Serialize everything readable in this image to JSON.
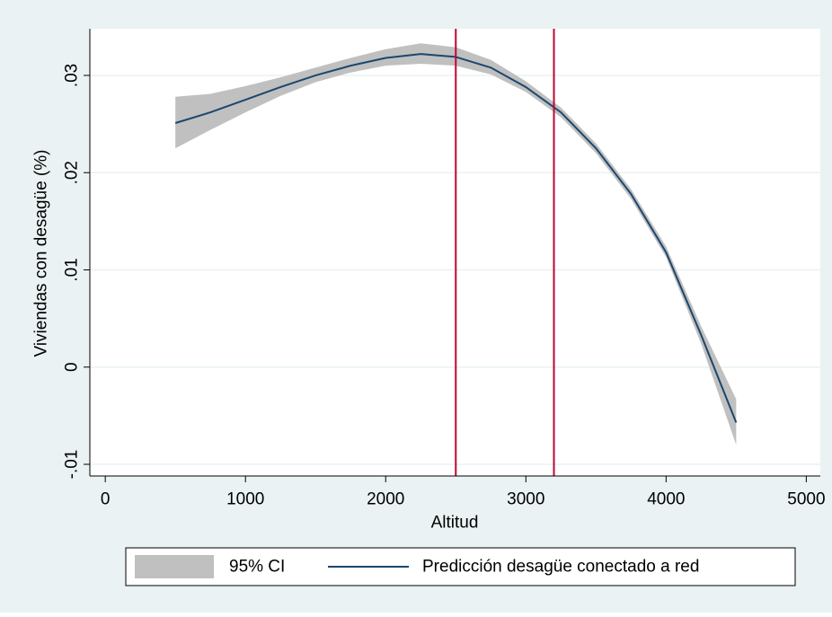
{
  "chart_data": {
    "type": "line",
    "xlabel": "Altitud",
    "ylabel": "Viviendas con desagüe (%)",
    "x": [
      500,
      750,
      1000,
      1250,
      1500,
      1750,
      2000,
      2250,
      2500,
      2750,
      3000,
      3250,
      3500,
      3750,
      4000,
      4250,
      4500
    ],
    "series": [
      {
        "name": "95% CI",
        "color": "#c0c0c0",
        "lower": [
          0.0225,
          0.0244,
          0.0262,
          0.0279,
          0.0293,
          0.0303,
          0.031,
          0.0312,
          0.031,
          0.0301,
          0.0283,
          0.0257,
          0.022,
          0.0173,
          0.0113,
          0.0024,
          -0.008
        ],
        "upper": [
          0.0278,
          0.0281,
          0.0289,
          0.0298,
          0.0308,
          0.0318,
          0.0327,
          0.0333,
          0.0329,
          0.0316,
          0.0294,
          0.0267,
          0.023,
          0.0183,
          0.0124,
          0.0042,
          -0.0033
        ]
      },
      {
        "name": "Predicción desagüe conectado a red",
        "color": "#1a476f",
        "values": [
          0.0251,
          0.0262,
          0.0275,
          0.0288,
          0.03,
          0.031,
          0.0318,
          0.0322,
          0.0319,
          0.0308,
          0.0288,
          0.0262,
          0.0225,
          0.0178,
          0.0118,
          0.0033,
          -0.0057
        ]
      }
    ],
    "vlines": [
      2500,
      3200
    ],
    "vline_color": "#c10534",
    "xlim": [
      -110,
      5100
    ],
    "xticks": [
      0,
      1000,
      2000,
      3000,
      4000,
      5000
    ],
    "ylim": [
      -0.0112,
      0.0348
    ],
    "yticks": [
      {
        "value": -0.01,
        "label": "-.01"
      },
      0,
      {
        "value": 0.01,
        "label": ".01"
      },
      {
        "value": 0.02,
        "label": ".02"
      },
      {
        "value": 0.03,
        "label": ".03"
      }
    ],
    "grid": true
  }
}
